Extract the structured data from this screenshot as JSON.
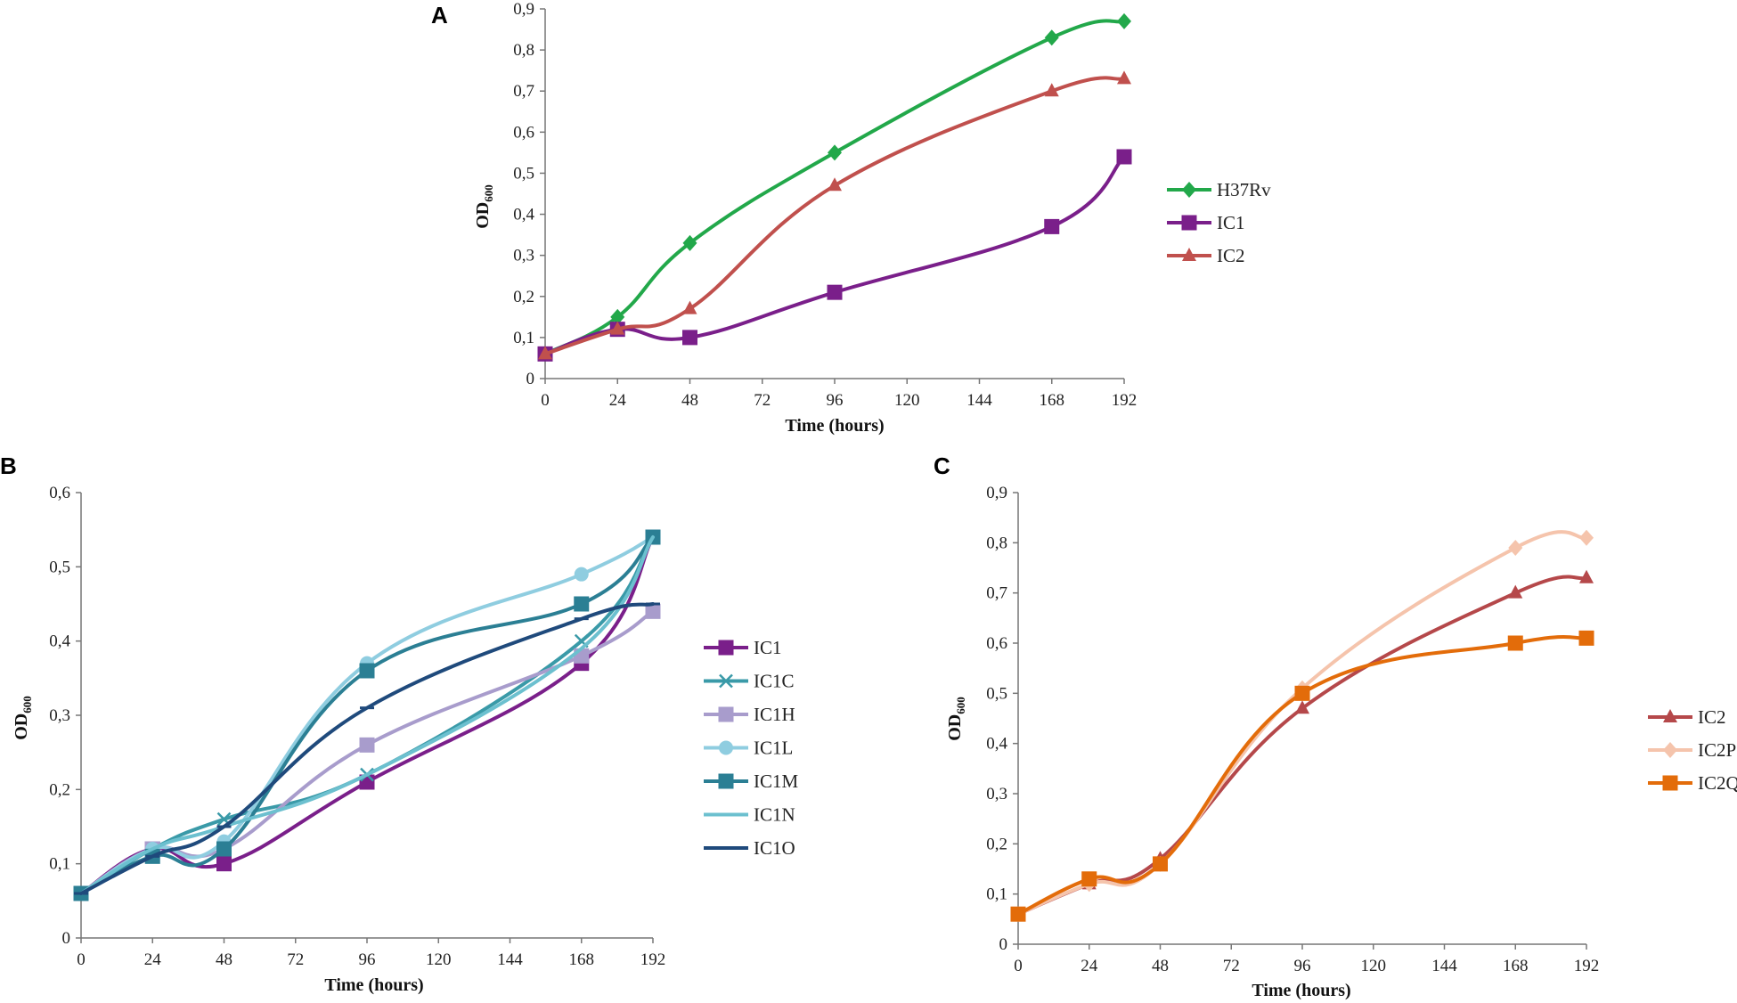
{
  "chart_data": [
    {
      "type": "line",
      "panel_label": "A",
      "xlabel": "Time (hours)",
      "ylabel": "OD",
      "ylabel_sub": "600",
      "xticks": [
        "0",
        "24",
        "48",
        "72",
        "96",
        "120",
        "144",
        "168",
        "192"
      ],
      "yticks": [
        "0",
        "0,1",
        "0,2",
        "0,3",
        "0,4",
        "0,5",
        "0,6",
        "0,7",
        "0,8",
        "0,9"
      ],
      "xlim": [
        0,
        192
      ],
      "ylim": [
        0,
        0.9
      ],
      "grid": false,
      "legend_position": "right",
      "x": [
        0,
        24,
        48,
        96,
        168,
        192
      ],
      "series": [
        {
          "name": "H37Rv",
          "color": "#22a84a",
          "marker": "diamond",
          "values": [
            0.06,
            0.15,
            0.33,
            0.55,
            0.83,
            0.87
          ]
        },
        {
          "name": "IC1",
          "color": "#7a1f8a",
          "marker": "square",
          "values": [
            0.06,
            0.12,
            0.1,
            0.21,
            0.37,
            0.54
          ]
        },
        {
          "name": "IC2",
          "color": "#c0504d",
          "marker": "triangle",
          "values": [
            0.06,
            0.12,
            0.17,
            0.47,
            0.7,
            0.73
          ]
        }
      ]
    },
    {
      "type": "line",
      "panel_label": "B",
      "xlabel": "Time (hours)",
      "ylabel": "OD",
      "ylabel_sub": "600",
      "xticks": [
        "0",
        "24",
        "48",
        "72",
        "96",
        "120",
        "144",
        "168",
        "192"
      ],
      "yticks": [
        "0",
        "0,1",
        "0,2",
        "0,3",
        "0,4",
        "0,5",
        "0,6"
      ],
      "xlim": [
        0,
        192
      ],
      "ylim": [
        0,
        0.6
      ],
      "grid": false,
      "legend_position": "right",
      "x": [
        0,
        24,
        48,
        96,
        168,
        192
      ],
      "series": [
        {
          "name": "IC1",
          "color": "#7a1f8a",
          "marker": "square",
          "values": [
            0.06,
            0.12,
            0.1,
            0.21,
            0.37,
            0.54
          ]
        },
        {
          "name": "IC1C",
          "color": "#3a9aa8",
          "marker": "x",
          "values": [
            0.06,
            0.12,
            0.16,
            0.22,
            0.4,
            0.54
          ]
        },
        {
          "name": "IC1H",
          "color": "#a89ccc",
          "marker": "square",
          "values": [
            0.06,
            0.12,
            0.12,
            0.26,
            0.38,
            0.44
          ]
        },
        {
          "name": "IC1L",
          "color": "#8fcde0",
          "marker": "circle",
          "values": [
            0.06,
            0.12,
            0.13,
            0.37,
            0.49,
            0.54
          ]
        },
        {
          "name": "IC1M",
          "color": "#2b7f94",
          "marker": "square",
          "values": [
            0.06,
            0.11,
            0.12,
            0.36,
            0.45,
            0.54
          ]
        },
        {
          "name": "IC1N",
          "color": "#6cc0cf",
          "marker": "none",
          "values": [
            0.06,
            0.12,
            0.15,
            0.22,
            0.39,
            0.54
          ]
        },
        {
          "name": "IC1O",
          "color": "#1f4a7c",
          "marker": "dash",
          "values": [
            0.06,
            0.11,
            0.15,
            0.31,
            0.43,
            0.45
          ]
        }
      ]
    },
    {
      "type": "line",
      "panel_label": "C",
      "xlabel": "Time (hours)",
      "ylabel": "OD",
      "ylabel_sub": "600",
      "xticks": [
        "0",
        "24",
        "48",
        "72",
        "96",
        "120",
        "144",
        "168",
        "192"
      ],
      "yticks": [
        "0",
        "0,1",
        "0,2",
        "0,3",
        "0,4",
        "0,5",
        "0,6",
        "0,7",
        "0,8",
        "0,9"
      ],
      "xlim": [
        0,
        192
      ],
      "ylim": [
        0,
        0.9
      ],
      "grid": false,
      "legend_position": "right",
      "x": [
        0,
        24,
        48,
        96,
        168,
        192
      ],
      "series": [
        {
          "name": "IC2",
          "color": "#b5484a",
          "marker": "triangle",
          "values": [
            0.06,
            0.12,
            0.17,
            0.47,
            0.7,
            0.73
          ]
        },
        {
          "name": "IC2P",
          "color": "#f5c4ac",
          "marker": "diamond",
          "values": [
            0.06,
            0.12,
            0.16,
            0.51,
            0.79,
            0.81
          ]
        },
        {
          "name": "IC2Q",
          "color": "#e36c0a",
          "marker": "square",
          "values": [
            0.06,
            0.13,
            0.16,
            0.5,
            0.6,
            0.61
          ]
        }
      ]
    }
  ]
}
